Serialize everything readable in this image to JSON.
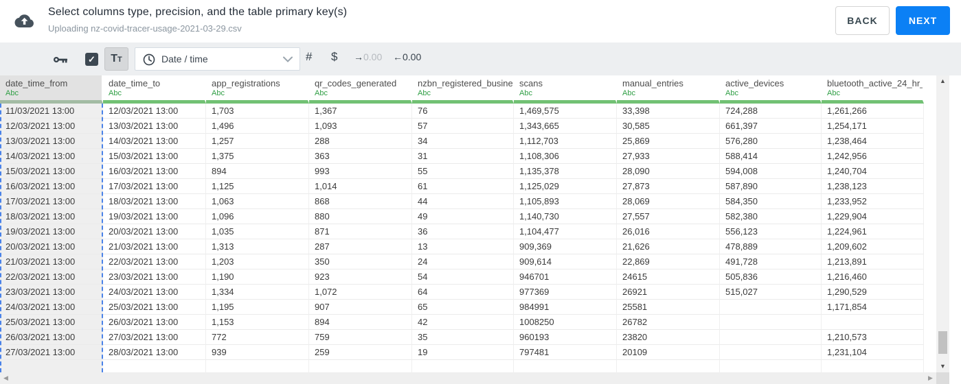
{
  "header": {
    "title": "Select columns type, precision, and the table primary key(s)",
    "subtitle": "Uploading nz-covid-tracer-usage-2021-03-29.csv",
    "back_label": "BACK",
    "next_label": "NEXT"
  },
  "toolbar": {
    "primary_key_checked": true,
    "text_type_label_big": "T",
    "text_type_label_small": "T",
    "type_dropdown_value": "Date / time",
    "number_label": "#",
    "currency_label": "$",
    "decimal_right_value": "0.00",
    "decimal_left_value": "0.00"
  },
  "icons": {
    "check": "✓",
    "arrow_right": "→",
    "arrow_left": "←",
    "triangle_up": "▲",
    "triangle_down": "▼",
    "triangle_left": "◀",
    "triangle_right": "▶"
  },
  "colors": {
    "accent_blue": "#0b80f5",
    "type_green": "#2f9e44",
    "header_bar_green": "#72c174",
    "selection_dash_blue": "#4a82e8",
    "toolbar_bg": "#edeff1",
    "selected_column_bg": "#efefef"
  },
  "table": {
    "columns": [
      {
        "name": "date_time_from",
        "type": "Abc",
        "selected": true
      },
      {
        "name": "date_time_to",
        "type": "Abc",
        "selected": false
      },
      {
        "name": "app_registrations",
        "type": "Abc",
        "selected": false
      },
      {
        "name": "qr_codes_generated",
        "type": "Abc",
        "selected": false
      },
      {
        "name": "nzbn_registered_busine",
        "type": "Abc",
        "selected": false
      },
      {
        "name": "scans",
        "type": "Abc",
        "selected": false
      },
      {
        "name": "manual_entries",
        "type": "Abc",
        "selected": false
      },
      {
        "name": "active_devices",
        "type": "Abc",
        "selected": false
      },
      {
        "name": "bluetooth_active_24_hr_",
        "type": "Abc",
        "selected": false
      }
    ],
    "rows": [
      [
        "11/03/2021 13:00",
        "12/03/2021 13:00",
        "1,703",
        "1,367",
        "76",
        "1,469,575",
        "33,398",
        "724,288",
        "1,261,266"
      ],
      [
        "12/03/2021 13:00",
        "13/03/2021 13:00",
        "1,496",
        "1,093",
        "57",
        "1,343,665",
        "30,585",
        "661,397",
        "1,254,171"
      ],
      [
        "13/03/2021 13:00",
        "14/03/2021 13:00",
        "1,257",
        "288",
        "34",
        "1,112,703",
        "25,869",
        "576,280",
        "1,238,464"
      ],
      [
        "14/03/2021 13:00",
        "15/03/2021 13:00",
        "1,375",
        "363",
        "31",
        "1,108,306",
        "27,933",
        "588,414",
        "1,242,956"
      ],
      [
        "15/03/2021 13:00",
        "16/03/2021 13:00",
        "894",
        "993",
        "55",
        "1,135,378",
        "28,090",
        "594,008",
        "1,240,704"
      ],
      [
        "16/03/2021 13:00",
        "17/03/2021 13:00",
        "1,125",
        "1,014",
        "61",
        "1,125,029",
        "27,873",
        "587,890",
        "1,238,123"
      ],
      [
        "17/03/2021 13:00",
        "18/03/2021 13:00",
        "1,063",
        "868",
        "44",
        "1,105,893",
        "28,069",
        "584,350",
        "1,233,952"
      ],
      [
        "18/03/2021 13:00",
        "19/03/2021 13:00",
        "1,096",
        "880",
        "49",
        "1,140,730",
        "27,557",
        "582,380",
        "1,229,904"
      ],
      [
        "19/03/2021 13:00",
        "20/03/2021 13:00",
        "1,035",
        "871",
        "36",
        "1,104,477",
        "26,016",
        "556,123",
        "1,224,961"
      ],
      [
        "20/03/2021 13:00",
        "21/03/2021 13:00",
        "1,313",
        "287",
        "13",
        "909,369",
        "21,626",
        "478,889",
        "1,209,602"
      ],
      [
        "21/03/2021 13:00",
        "22/03/2021 13:00",
        "1,203",
        "350",
        "24",
        "909,614",
        "22,869",
        "491,728",
        "1,213,891"
      ],
      [
        "22/03/2021 13:00",
        "23/03/2021 13:00",
        "1,190",
        "923",
        "54",
        "946701",
        "24615",
        "505,836",
        "1,216,460"
      ],
      [
        "23/03/2021 13:00",
        "24/03/2021 13:00",
        "1,334",
        "1,072",
        "64",
        "977369",
        "26921",
        "515,027",
        "1,290,529"
      ],
      [
        "24/03/2021 13:00",
        "25/03/2021 13:00",
        "1,195",
        "907",
        "65",
        "984991",
        "25581",
        "",
        "1,171,854"
      ],
      [
        "25/03/2021 13:00",
        "26/03/2021 13:00",
        "1,153",
        "894",
        "42",
        "1008250",
        "26782",
        "",
        ""
      ],
      [
        "26/03/2021 13:00",
        "27/03/2021 13:00",
        "772",
        "759",
        "35",
        "960193",
        "23820",
        "",
        "1,210,573"
      ],
      [
        "27/03/2021 13:00",
        "28/03/2021 13:00",
        "939",
        "259",
        "19",
        "797481",
        "20109",
        "",
        "1,231,104"
      ]
    ]
  }
}
